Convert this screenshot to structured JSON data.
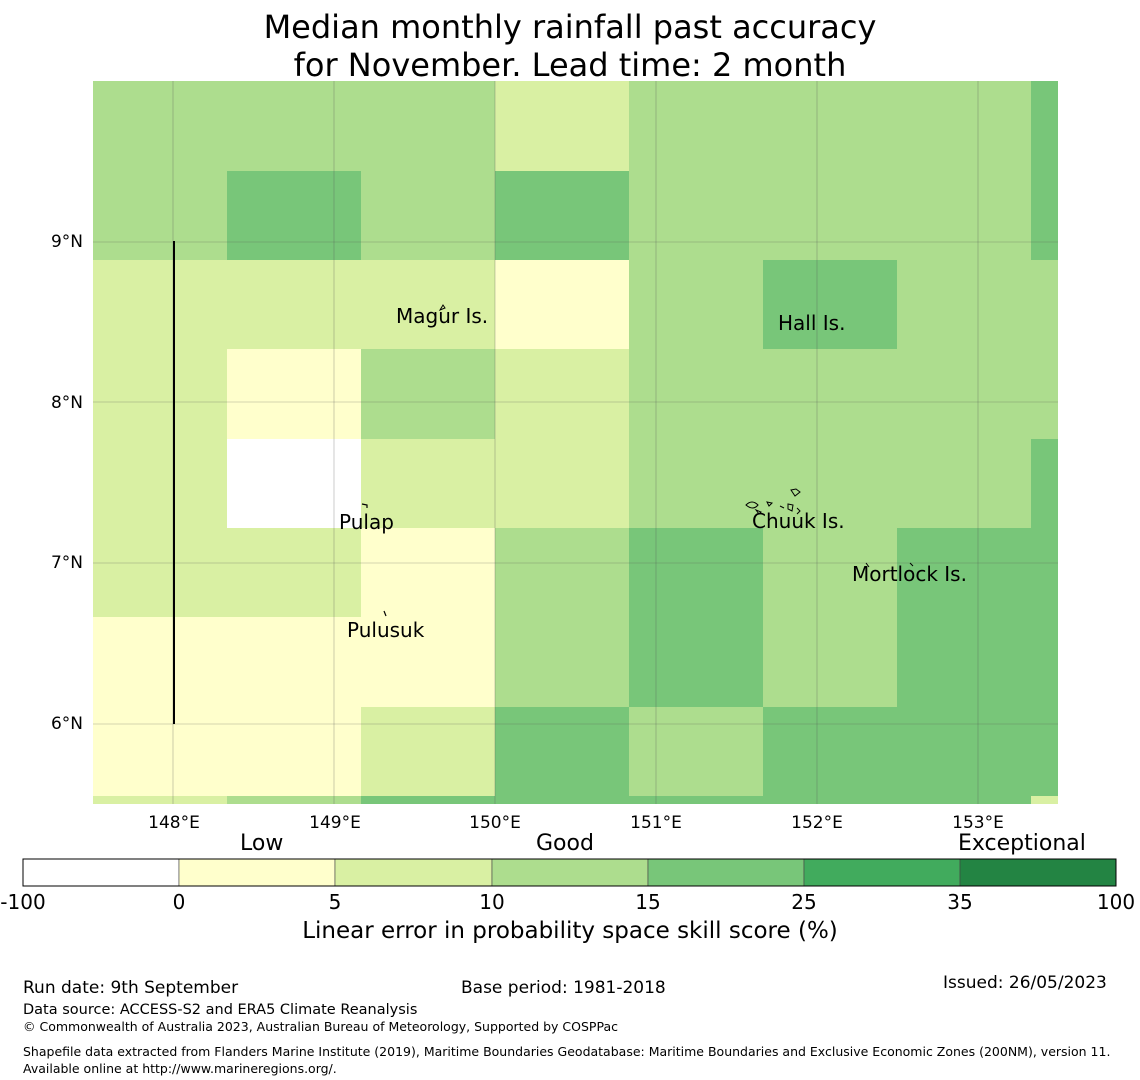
{
  "title_line1": "Median monthly rainfall past accuracy",
  "title_line2": "for November. Lead time: 2 month",
  "map": {
    "lon_ticks": [
      "148°E",
      "149°E",
      "150°E",
      "151°E",
      "152°E",
      "153°E"
    ],
    "lat_ticks": [
      "9°N",
      "8°N",
      "7°N",
      "6°N"
    ],
    "lon_range": [
      147.5,
      153.5
    ],
    "lat_range": [
      5.5,
      10.0
    ],
    "places": [
      {
        "name": "Magur Is.",
        "lon": 149.67,
        "lat": 8.57
      },
      {
        "name": "Hall Is.",
        "lon": 151.9,
        "lat": 8.55
      },
      {
        "name": "Pulap",
        "lon": 149.2,
        "lat": 7.35
      },
      {
        "name": "Chuuk Is.",
        "lon": 151.8,
        "lat": 7.4
      },
      {
        "name": "Mortlock Is.",
        "lon": 152.6,
        "lat": 6.95
      },
      {
        "name": "Pulusuk",
        "lon": 149.3,
        "lat": 6.67
      }
    ],
    "grid_class_rows": [
      [
        2,
        2,
        2,
        1,
        2,
        2,
        2,
        3
      ],
      [
        2,
        3,
        2,
        3,
        2,
        2,
        2,
        3
      ],
      [
        1,
        1,
        1,
        0,
        2,
        3,
        2,
        2
      ],
      [
        1,
        0,
        2,
        1,
        2,
        2,
        2,
        2
      ],
      [
        1,
        -1,
        1,
        1,
        2,
        2,
        2,
        3
      ],
      [
        1,
        1,
        0,
        2,
        3,
        2,
        3,
        3
      ],
      [
        0,
        0,
        0,
        2,
        3,
        2,
        3,
        3
      ],
      [
        0,
        0,
        1,
        3,
        2,
        3,
        3,
        3
      ],
      [
        1,
        2,
        3,
        3,
        3,
        3,
        3,
        1
      ]
    ]
  },
  "colorbar": {
    "category_low": "Low",
    "category_good": "Good",
    "category_exceptional": "Exceptional",
    "ticks": [
      "-100",
      "0",
      "5",
      "10",
      "15",
      "25",
      "35",
      "100"
    ],
    "colors": [
      "#ffffff",
      "#ffffcc",
      "#d9f0a3",
      "#addd8e",
      "#78c679",
      "#41ab5d",
      "#238443"
    ],
    "label": "Linear error in probability space skill score (%)"
  },
  "footer": {
    "run_date": "Run date: 9th September",
    "base_period": "Base period: 1981-2018",
    "issued": "Issued: 26/05/2023",
    "data_source": "Data source: ACCESS-S2 and ERA5 Climate Reanalysis",
    "copyright": "© Commonwealth of Australia 2023, Australian Bureau of Meteorology, Supported by COSPPac",
    "shapefile": "Shapefile data extracted from Flanders Marine Institute (2019), Maritime Boundaries Geodatabase: Maritime Boundaries and Exclusive Economic Zones (200NM), version 11. Available online at http://www.marineregions.org/."
  }
}
